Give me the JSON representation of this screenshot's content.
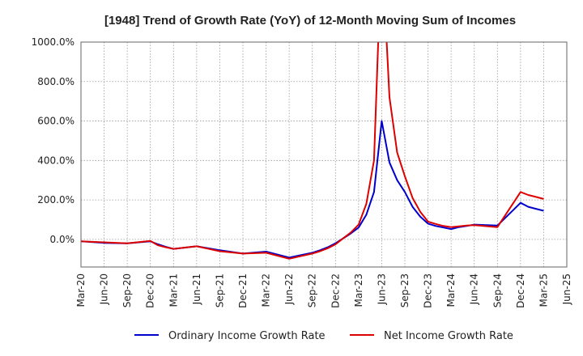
{
  "chart_data": {
    "type": "line",
    "title": "[1948]  Trend of Growth Rate (YoY) of 12-Month Moving Sum of Incomes",
    "xlabel": "",
    "ylabel": "",
    "ylim": [
      -140,
      1000
    ],
    "y_ticks": [
      0,
      200,
      400,
      600,
      800,
      1000
    ],
    "y_tick_labels": [
      "0.0%",
      "200.0%",
      "400.0%",
      "600.0%",
      "800.0%",
      "1000.0%"
    ],
    "x_tick_labels": [
      "Mar-20",
      "Jun-20",
      "Sep-20",
      "Dec-20",
      "Mar-21",
      "Jun-21",
      "Sep-21",
      "Dec-21",
      "Mar-22",
      "Jun-22",
      "Sep-22",
      "Dec-22",
      "Mar-23",
      "Jun-23",
      "Sep-23",
      "Dec-23",
      "Mar-24",
      "Jun-24",
      "Sep-24",
      "Dec-24",
      "Mar-25",
      "Jun-25"
    ],
    "grid": true,
    "legend_position": "bottom",
    "series": [
      {
        "name": "Ordinary Income Growth Rate",
        "color": "#0000cc",
        "x": [
          "Mar-20",
          "Jun-20",
          "Sep-20",
          "Dec-20",
          "Jan-21",
          "Feb-21",
          "Mar-21",
          "Jun-21",
          "Sep-21",
          "Dec-21",
          "Mar-22",
          "Jun-22",
          "Sep-22",
          "Oct-22",
          "Nov-22",
          "Dec-22",
          "Jan-23",
          "Feb-23",
          "Mar-23",
          "Apr-23",
          "May-23",
          "Jun-23",
          "Jul-23",
          "Aug-23",
          "Sep-23",
          "Oct-23",
          "Nov-23",
          "Dec-23",
          "Jan-24",
          "Feb-24",
          "Mar-24",
          "Apr-24",
          "May-24",
          "Jun-24",
          "Sep-24",
          "Dec-24",
          "Jan-25",
          "Feb-25",
          "Mar-25"
        ],
        "values": [
          -10,
          -18,
          -20,
          -10,
          -25,
          -38,
          -48,
          -35,
          -55,
          -72,
          -62,
          -92,
          -68,
          -55,
          -40,
          -20,
          5,
          30,
          60,
          125,
          240,
          600,
          390,
          300,
          240,
          165,
          115,
          80,
          68,
          60,
          52,
          62,
          68,
          75,
          70,
          185,
          165,
          155,
          145
        ]
      },
      {
        "name": "Net Income Growth Rate",
        "color": "#dd0000",
        "x": [
          "Mar-20",
          "Jun-20",
          "Sep-20",
          "Dec-20",
          "Jan-21",
          "Feb-21",
          "Mar-21",
          "Jun-21",
          "Sep-21",
          "Dec-21",
          "Mar-22",
          "Jun-22",
          "Sep-22",
          "Oct-22",
          "Nov-22",
          "Dec-22",
          "Jan-23",
          "Feb-23",
          "Mar-23",
          "Apr-23",
          "May-23",
          "Jun-23",
          "Jul-23",
          "Aug-23",
          "Sep-23",
          "Oct-23",
          "Nov-23",
          "Dec-23",
          "Jan-24",
          "Feb-24",
          "Mar-24",
          "Apr-24",
          "May-24",
          "Jun-24",
          "Sep-24",
          "Dec-24",
          "Jan-25",
          "Feb-25",
          "Mar-25"
        ],
        "values": [
          -10,
          -15,
          -20,
          -8,
          -30,
          -40,
          -48,
          -35,
          -60,
          -72,
          -68,
          -98,
          -72,
          -60,
          -45,
          -25,
          5,
          35,
          75,
          180,
          400,
          1500,
          720,
          440,
          320,
          210,
          140,
          90,
          78,
          68,
          62,
          66,
          70,
          72,
          62,
          240,
          225,
          215,
          205
        ]
      }
    ]
  }
}
